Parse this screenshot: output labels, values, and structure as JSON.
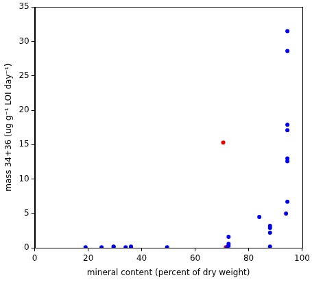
{
  "chart_data": {
    "type": "scatter",
    "x_label": "mineral content (percent of dry weight)",
    "y_label": "mass 34+36 (ug g⁻¹ LOI day⁻¹)",
    "xlim": [
      0,
      100
    ],
    "xticks": [
      0,
      20,
      40,
      60,
      80,
      100
    ],
    "ylim": [
      0,
      35
    ],
    "yticks": [
      0,
      5,
      10,
      15,
      20,
      25,
      30,
      35
    ],
    "grid": false,
    "series": [
      {
        "color": "#0000ee",
        "marker": "circle",
        "x": [
          19,
          25,
          29.5,
          29.5,
          34,
          36,
          36,
          49.5,
          72.5,
          72.5,
          72.5,
          72,
          84,
          88,
          88,
          88,
          88,
          94,
          94.5,
          94.5,
          94.5,
          94.5,
          94.5,
          94.5,
          94.5
        ],
        "values": [
          0.1,
          0.1,
          0.2,
          0.15,
          0.1,
          0.2,
          0.1,
          0.1,
          1.6,
          0.6,
          0.3,
          0.1,
          4.5,
          3.2,
          2.9,
          2.2,
          0.2,
          5.0,
          31.5,
          28.6,
          17.9,
          17.1,
          13.0,
          12.6,
          6.7
        ]
      },
      {
        "color": "#ee0000",
        "marker": "circle",
        "x": [
          70.5,
          71.5
        ],
        "values": [
          15.3,
          0.1
        ]
      }
    ]
  }
}
